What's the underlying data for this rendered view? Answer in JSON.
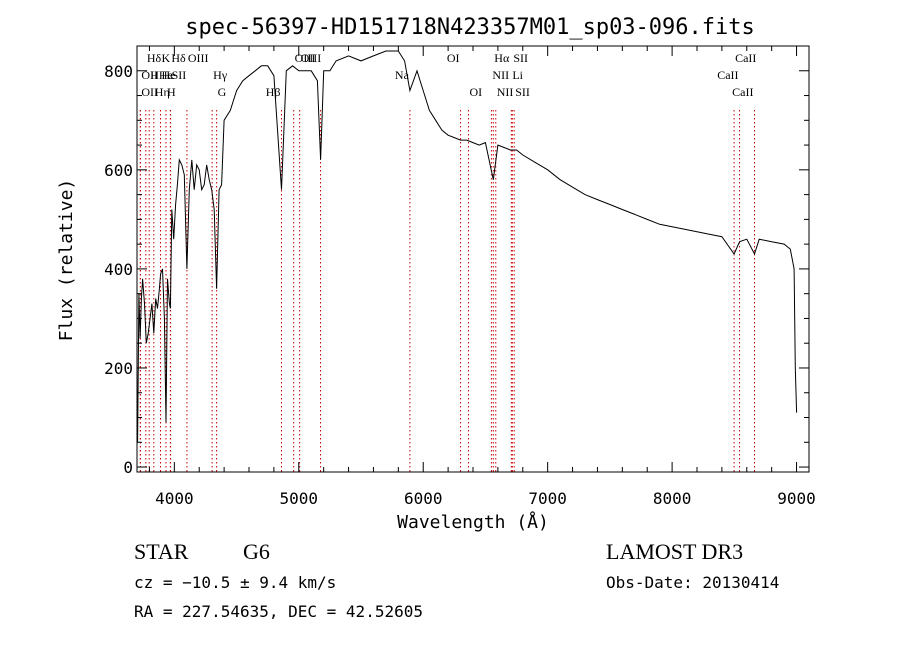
{
  "chart_data": {
    "type": "line",
    "title": "spec-56397-HD151718N423357M01_sp03-096.fits",
    "xlabel": "Wavelength (Å)",
    "ylabel": "Flux (relative)",
    "xlim": [
      3700,
      9100
    ],
    "ylim": [
      -10,
      850
    ],
    "x_ticks": [
      4000,
      5000,
      6000,
      7000,
      8000,
      9000
    ],
    "y_ticks": [
      0,
      200,
      400,
      600,
      800
    ],
    "grid": false,
    "line_color": "#000000",
    "marker_color": "#cc0000",
    "series": [
      {
        "x": [
          3705,
          3715,
          3725,
          3735,
          3745,
          3760,
          3775,
          3790,
          3805,
          3820,
          3835,
          3850,
          3865,
          3880,
          3890,
          3905,
          3920,
          3933,
          3945,
          3960,
          3968,
          3980,
          3995,
          4010,
          4025,
          4040,
          4060,
          4080,
          4101,
          4120,
          4140,
          4160,
          4180,
          4200,
          4220,
          4240,
          4260,
          4280,
          4300,
          4320,
          4340,
          4360,
          4380,
          4400,
          4450,
          4500,
          4550,
          4600,
          4650,
          4700,
          4750,
          4800,
          4861,
          4900,
          4950,
          5000,
          5050,
          5100,
          5150,
          5175,
          5200,
          5250,
          5300,
          5400,
          5500,
          5600,
          5700,
          5800,
          5850,
          5893,
          5950,
          6000,
          6050,
          6100,
          6150,
          6200,
          6250,
          6300,
          6350,
          6400,
          6450,
          6500,
          6563,
          6600,
          6650,
          6700,
          6750,
          6800,
          6900,
          7000,
          7100,
          7200,
          7300,
          7400,
          7500,
          7600,
          7700,
          7800,
          7900,
          8000,
          8100,
          8200,
          8300,
          8400,
          8498,
          8542,
          8600,
          8662,
          8700,
          8800,
          8900,
          8950,
          8980,
          8990,
          9000
        ],
        "y": [
          50,
          350,
          260,
          340,
          380,
          330,
          250,
          270,
          300,
          330,
          270,
          340,
          320,
          360,
          390,
          400,
          300,
          90,
          380,
          330,
          320,
          520,
          460,
          530,
          570,
          620,
          610,
          590,
          400,
          560,
          620,
          560,
          610,
          600,
          560,
          570,
          610,
          580,
          560,
          520,
          360,
          560,
          570,
          700,
          720,
          760,
          780,
          790,
          800,
          810,
          810,
          790,
          560,
          800,
          810,
          800,
          800,
          800,
          780,
          620,
          800,
          800,
          820,
          830,
          820,
          830,
          840,
          840,
          820,
          760,
          800,
          760,
          720,
          700,
          680,
          670,
          665,
          660,
          660,
          655,
          650,
          655,
          580,
          650,
          645,
          640,
          640,
          630,
          615,
          600,
          580,
          565,
          550,
          540,
          530,
          520,
          510,
          500,
          490,
          485,
          480,
          475,
          470,
          465,
          430,
          455,
          460,
          430,
          460,
          455,
          450,
          440,
          400,
          200,
          110
        ]
      }
    ],
    "line_markers": [
      {
        "label": "Hδ",
        "x": 3771,
        "row": 1,
        "side": "right"
      },
      {
        "label": "OII",
        "x": 3727,
        "row": 2,
        "side": "right"
      },
      {
        "label": "OII",
        "x": 3727,
        "row": 3,
        "side": "right"
      },
      {
        "label": "HHe",
        "x": 3798,
        "row": 2,
        "side": "right"
      },
      {
        "label": "Hη",
        "x": 3835,
        "row": 3,
        "side": "right"
      },
      {
        "label": "K",
        "x": 3889,
        "row": 1,
        "side": "right"
      },
      {
        "label": "He",
        "x": 3889,
        "row": 2,
        "side": "right"
      },
      {
        "label": "H",
        "x": 3933,
        "row": 3,
        "side": "right"
      },
      {
        "label": "Hδ",
        "x": 3968,
        "row": 1,
        "side": "right"
      },
      {
        "label": "SII",
        "x": 3970,
        "row": 2,
        "side": "right"
      },
      {
        "label": "OIII",
        "x": 4101,
        "row": 1,
        "side": "right"
      },
      {
        "label": "Hγ",
        "x": 4304,
        "row": 2,
        "side": "right"
      },
      {
        "label": "G",
        "x": 4340,
        "row": 3,
        "side": "right"
      },
      {
        "label": "Hβ",
        "x": 4861,
        "row": 3,
        "side": "left"
      },
      {
        "label": "OIII",
        "x": 4959,
        "row": 1,
        "side": "right"
      },
      {
        "label": "OIII",
        "x": 5007,
        "row": 1,
        "side": "right"
      },
      {
        "label": "",
        "x": 5175,
        "row": 0,
        "side": "right"
      },
      {
        "label": "Na",
        "x": 5893,
        "row": 2,
        "side": "left"
      },
      {
        "label": "OI",
        "x": 6300,
        "row": 1,
        "side": "left"
      },
      {
        "label": "OI",
        "x": 6364,
        "row": 3,
        "side": "right"
      },
      {
        "label": "NII",
        "x": 6548,
        "row": 2,
        "side": "right"
      },
      {
        "label": "Hα",
        "x": 6563,
        "row": 1,
        "side": "right"
      },
      {
        "label": "NII",
        "x": 6583,
        "row": 3,
        "side": "right"
      },
      {
        "label": "SII",
        "x": 6716,
        "row": 1,
        "side": "right"
      },
      {
        "label": "Li",
        "x": 6708,
        "row": 2,
        "side": "right"
      },
      {
        "label": "SII",
        "x": 6731,
        "row": 3,
        "side": "right"
      },
      {
        "label": "CaII",
        "x": 8498,
        "row": 1,
        "side": "right"
      },
      {
        "label": "CaII",
        "x": 8542,
        "row": 2,
        "side": "left"
      },
      {
        "label": "CaII",
        "x": 8662,
        "row": 3,
        "side": "left"
      }
    ]
  },
  "info": {
    "object_class": "STAR",
    "subclass": "G6",
    "redshift": "cz = −10.5 ± 9.4 km/s",
    "coords": "RA = 227.54635, DEC =  42.52605",
    "survey": "LAMOST DR3",
    "obs_date": "Obs-Date: 20130414"
  }
}
